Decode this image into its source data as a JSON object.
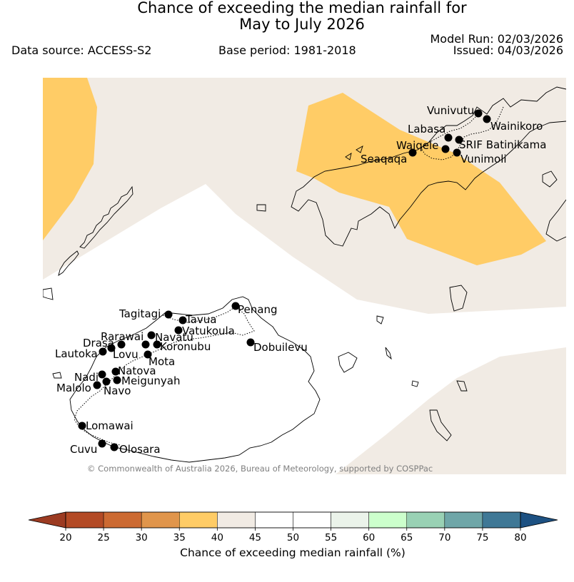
{
  "title": {
    "line1": "Chance of exceeding the median rainfall for",
    "line2": "May to July 2026"
  },
  "header": {
    "data_source": "Data source: ACCESS-S2",
    "base_period": "Base period: 1981-2018",
    "model_run": "Model Run: 02/03/2026",
    "issued": "Issued: 04/03/2026"
  },
  "map": {
    "copyright": "© Commonwealth of Australia 2026, Bureau of Meteorology, supported by COSPPac",
    "stations": [
      {
        "name": "Vunivutu"
      },
      {
        "name": "Wainikoro"
      },
      {
        "name": "Labasa"
      },
      {
        "name": "SRIF Batinikama"
      },
      {
        "name": "Waiqele"
      },
      {
        "name": "Seaqaqa"
      },
      {
        "name": "Vunimoli"
      },
      {
        "name": "Tagitagi"
      },
      {
        "name": "Tavua"
      },
      {
        "name": "Penang"
      },
      {
        "name": "Vatukoula"
      },
      {
        "name": "Rarawai"
      },
      {
        "name": "Navatu"
      },
      {
        "name": "Drasa"
      },
      {
        "name": "Koronubu"
      },
      {
        "name": "Lautoka"
      },
      {
        "name": "Lovu"
      },
      {
        "name": "Dobuilevu"
      },
      {
        "name": "Mota"
      },
      {
        "name": "Natova"
      },
      {
        "name": "Nadi"
      },
      {
        "name": "Meigunyah"
      },
      {
        "name": "Malolo"
      },
      {
        "name": "Navo"
      },
      {
        "name": "Lomawai"
      },
      {
        "name": "Cuvu"
      },
      {
        "name": "Olosara"
      }
    ]
  },
  "colorbar": {
    "label": "Chance of exceeding median rainfall (%)",
    "ticks": [
      "20",
      "25",
      "30",
      "35",
      "40",
      "45",
      "50",
      "55",
      "60",
      "65",
      "70",
      "75",
      "80"
    ],
    "colors": {
      "under": "#9c3b22",
      "bins": [
        "#b34a25",
        "#cc6a32",
        "#e0954b",
        "#ffcc66",
        "#f1ebe4",
        "#ffffff",
        "#ffffff",
        "#ebf3ea",
        "#ccffcc",
        "#99d1b4",
        "#6fa6a8",
        "#3f7896"
      ],
      "over": "#1d5182"
    }
  }
}
